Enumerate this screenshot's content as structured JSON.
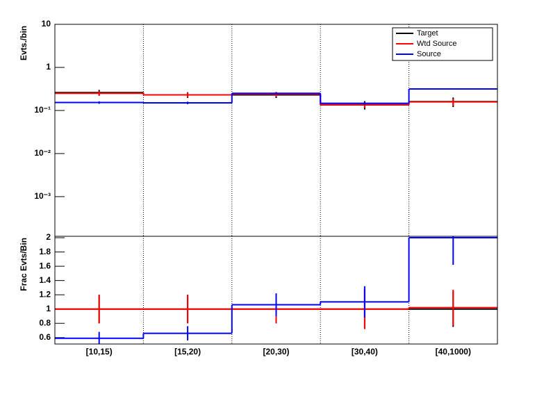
{
  "chart_data": [
    {
      "type": "step",
      "ylabel": "Evts./bin",
      "log_y": true,
      "grid_x": true,
      "legend": "top-right",
      "ylim": [
        0.00012,
        10
      ],
      "yticks": [
        {
          "value": 10,
          "label": "10"
        },
        {
          "value": 1,
          "label": "1"
        },
        {
          "value": 0.1,
          "label": "10⁻¹"
        },
        {
          "value": 0.01,
          "label": "10⁻²"
        },
        {
          "value": 0.001,
          "label": "10⁻³"
        }
      ],
      "series": [
        {
          "name": "Target",
          "color": "#000000",
          "values": [
            0.26,
            0.23,
            0.23,
            0.135,
            0.16
          ],
          "errors": [
            0.04,
            0.035,
            0.035,
            0.03,
            0.04
          ]
        },
        {
          "name": "Wtd Source",
          "color": "#ff0000",
          "values": [
            0.25,
            0.23,
            0.24,
            0.136,
            0.158
          ],
          "errors": [
            0.03,
            0.03,
            0.03,
            0.02,
            0.03
          ]
        },
        {
          "name": "Source",
          "color": "#0000ff",
          "values": [
            0.153,
            0.15,
            0.25,
            0.147,
            0.316
          ],
          "errors": [
            0.01,
            0.01,
            0.012,
            0.01,
            0.012
          ]
        }
      ]
    },
    {
      "type": "step",
      "ylabel": "Frac Evts/Bin",
      "grid_x": true,
      "categories": [
        "[10,15)",
        "[15,20)",
        "[20,30)",
        "[30,40)",
        "[40,1000)"
      ],
      "ylim": [
        0.51,
        2.02
      ],
      "yticks": [
        0.6,
        0.8,
        1,
        1.2,
        1.4,
        1.6,
        1.8,
        2
      ],
      "series": [
        {
          "name": "Target",
          "color": "#000000",
          "values": [
            1.0,
            1.0,
            1.0,
            1.0,
            1.0
          ],
          "errors": [
            0.2,
            0.2,
            0.2,
            0.28,
            0.25
          ]
        },
        {
          "name": "Wtd Source",
          "color": "#ff0000",
          "values": [
            1.0,
            1.0,
            1.0,
            1.0,
            1.02
          ],
          "errors": [
            0.2,
            0.2,
            0.2,
            0.28,
            0.25
          ]
        },
        {
          "name": "Source",
          "color": "#0000ff",
          "values": [
            0.59,
            0.66,
            1.06,
            1.1,
            2.0
          ],
          "errors": [
            0.09,
            0.1,
            0.16,
            0.22,
            0.38
          ]
        }
      ]
    }
  ]
}
